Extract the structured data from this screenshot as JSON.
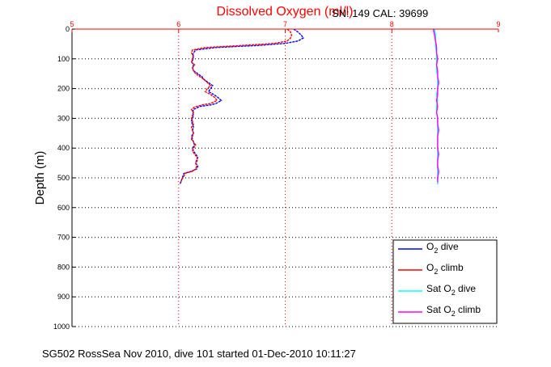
{
  "chart_data": {
    "type": "line",
    "title": "Dissolved Oxygen (ml/l)",
    "subtitle": "SN: 149  CAL: 39699",
    "xlabel": "",
    "ylabel": "Depth (m)",
    "xlim": [
      5,
      9
    ],
    "ylim": [
      0,
      1000
    ],
    "y_inverted": true,
    "x_ticks": [
      "5",
      "6",
      "7",
      "8",
      "9"
    ],
    "y_ticks": [
      "0",
      "100",
      "200",
      "300",
      "400",
      "500",
      "600",
      "700",
      "800",
      "900",
      "1000"
    ],
    "grid": true,
    "legend_position": "bottom-right",
    "colors": {
      "title": "#ff0000",
      "x_axis": "#ff0000",
      "o2_dive": "#0000ff",
      "o2_climb": "#ff0000",
      "sat_dive": "#00ffff",
      "sat_climb": "#ff00ff"
    },
    "legend": [
      {
        "base": "O",
        "sub": "2",
        "suffix": " dive"
      },
      {
        "base": "O",
        "sub": "2",
        "suffix": " climb"
      },
      {
        "base": "Sat O",
        "sub": "2",
        "suffix": " dive"
      },
      {
        "base": "Sat O",
        "sub": "2",
        "suffix": " climb"
      }
    ],
    "series": [
      {
        "points": [
          [
            7.08,
            0
          ],
          [
            7.12,
            10
          ],
          [
            7.15,
            20
          ],
          [
            7.17,
            30
          ],
          [
            7.12,
            40
          ],
          [
            7.0,
            48
          ],
          [
            6.75,
            55
          ],
          [
            6.35,
            62
          ],
          [
            6.16,
            70
          ],
          [
            6.14,
            80
          ],
          [
            6.13,
            90
          ],
          [
            6.14,
            100
          ],
          [
            6.12,
            110
          ],
          [
            6.14,
            120
          ],
          [
            6.13,
            130
          ],
          [
            6.14,
            140
          ],
          [
            6.18,
            150
          ],
          [
            6.22,
            160
          ],
          [
            6.24,
            170
          ],
          [
            6.28,
            180
          ],
          [
            6.32,
            190
          ],
          [
            6.3,
            200
          ],
          [
            6.28,
            210
          ],
          [
            6.33,
            220
          ],
          [
            6.37,
            230
          ],
          [
            6.4,
            240
          ],
          [
            6.35,
            250
          ],
          [
            6.3,
            255
          ],
          [
            6.2,
            260
          ],
          [
            6.14,
            270
          ],
          [
            6.13,
            280
          ],
          [
            6.14,
            290
          ],
          [
            6.13,
            300
          ],
          [
            6.12,
            310
          ],
          [
            6.13,
            320
          ],
          [
            6.14,
            330
          ],
          [
            6.13,
            340
          ],
          [
            6.14,
            350
          ],
          [
            6.12,
            360
          ],
          [
            6.13,
            370
          ],
          [
            6.14,
            380
          ],
          [
            6.15,
            390
          ],
          [
            6.13,
            400
          ],
          [
            6.14,
            410
          ],
          [
            6.16,
            420
          ],
          [
            6.18,
            430
          ],
          [
            6.17,
            440
          ],
          [
            6.16,
            450
          ],
          [
            6.18,
            460
          ],
          [
            6.17,
            470
          ],
          [
            6.12,
            478
          ],
          [
            6.05,
            485
          ],
          [
            6.04,
            495
          ],
          [
            6.03,
            505
          ],
          [
            6.02,
            515
          ],
          [
            6.01,
            522
          ]
        ]
      },
      {
        "points": [
          [
            7.02,
            0
          ],
          [
            7.05,
            10
          ],
          [
            7.06,
            20
          ],
          [
            7.05,
            30
          ],
          [
            7.02,
            40
          ],
          [
            6.9,
            48
          ],
          [
            6.6,
            55
          ],
          [
            6.25,
            62
          ],
          [
            6.13,
            70
          ],
          [
            6.12,
            80
          ],
          [
            6.14,
            90
          ],
          [
            6.13,
            100
          ],
          [
            6.12,
            110
          ],
          [
            6.15,
            120
          ],
          [
            6.13,
            130
          ],
          [
            6.14,
            140
          ],
          [
            6.16,
            150
          ],
          [
            6.2,
            160
          ],
          [
            6.24,
            170
          ],
          [
            6.27,
            180
          ],
          [
            6.3,
            190
          ],
          [
            6.27,
            200
          ],
          [
            6.25,
            210
          ],
          [
            6.3,
            220
          ],
          [
            6.34,
            230
          ],
          [
            6.36,
            240
          ],
          [
            6.3,
            250
          ],
          [
            6.22,
            255
          ],
          [
            6.15,
            262
          ],
          [
            6.12,
            270
          ],
          [
            6.14,
            280
          ],
          [
            6.13,
            290
          ],
          [
            6.12,
            300
          ],
          [
            6.13,
            310
          ],
          [
            6.14,
            320
          ],
          [
            6.12,
            330
          ],
          [
            6.13,
            340
          ],
          [
            6.14,
            350
          ],
          [
            6.13,
            360
          ],
          [
            6.12,
            370
          ],
          [
            6.14,
            380
          ],
          [
            6.16,
            390
          ],
          [
            6.14,
            400
          ],
          [
            6.13,
            410
          ],
          [
            6.15,
            420
          ],
          [
            6.17,
            430
          ],
          [
            6.18,
            440
          ],
          [
            6.16,
            450
          ],
          [
            6.17,
            460
          ],
          [
            6.16,
            470
          ],
          [
            6.13,
            478
          ],
          [
            6.06,
            485
          ],
          [
            6.05,
            495
          ],
          [
            6.03,
            505
          ],
          [
            6.02,
            515
          ]
        ]
      },
      {
        "points": [
          [
            8.4,
            0
          ],
          [
            8.41,
            20
          ],
          [
            8.41,
            40
          ],
          [
            8.41,
            60
          ],
          [
            8.42,
            80
          ],
          [
            8.42,
            100
          ],
          [
            8.42,
            120
          ],
          [
            8.42,
            140
          ],
          [
            8.43,
            160
          ],
          [
            8.43,
            180
          ],
          [
            8.43,
            200
          ],
          [
            8.42,
            220
          ],
          [
            8.43,
            240
          ],
          [
            8.42,
            260
          ],
          [
            8.42,
            280
          ],
          [
            8.43,
            300
          ],
          [
            8.43,
            320
          ],
          [
            8.43,
            340
          ],
          [
            8.43,
            360
          ],
          [
            8.43,
            380
          ],
          [
            8.43,
            400
          ],
          [
            8.43,
            420
          ],
          [
            8.43,
            440
          ],
          [
            8.43,
            460
          ],
          [
            8.43,
            480
          ],
          [
            8.43,
            500
          ],
          [
            8.43,
            522
          ]
        ]
      },
      {
        "points": [
          [
            8.39,
            0
          ],
          [
            8.4,
            20
          ],
          [
            8.41,
            40
          ],
          [
            8.42,
            60
          ],
          [
            8.42,
            80
          ],
          [
            8.43,
            100
          ],
          [
            8.42,
            120
          ],
          [
            8.43,
            140
          ],
          [
            8.43,
            160
          ],
          [
            8.44,
            180
          ],
          [
            8.43,
            200
          ],
          [
            8.43,
            220
          ],
          [
            8.42,
            240
          ],
          [
            8.43,
            260
          ],
          [
            8.42,
            280
          ],
          [
            8.43,
            300
          ],
          [
            8.43,
            320
          ],
          [
            8.44,
            340
          ],
          [
            8.43,
            360
          ],
          [
            8.43,
            380
          ],
          [
            8.43,
            400
          ],
          [
            8.44,
            420
          ],
          [
            8.43,
            440
          ],
          [
            8.43,
            460
          ],
          [
            8.44,
            480
          ],
          [
            8.43,
            500
          ],
          [
            8.43,
            515
          ]
        ]
      }
    ]
  },
  "footer": "SG502 RossSea Nov 2010, dive 101 started 01-Dec-2010 10:11:27"
}
